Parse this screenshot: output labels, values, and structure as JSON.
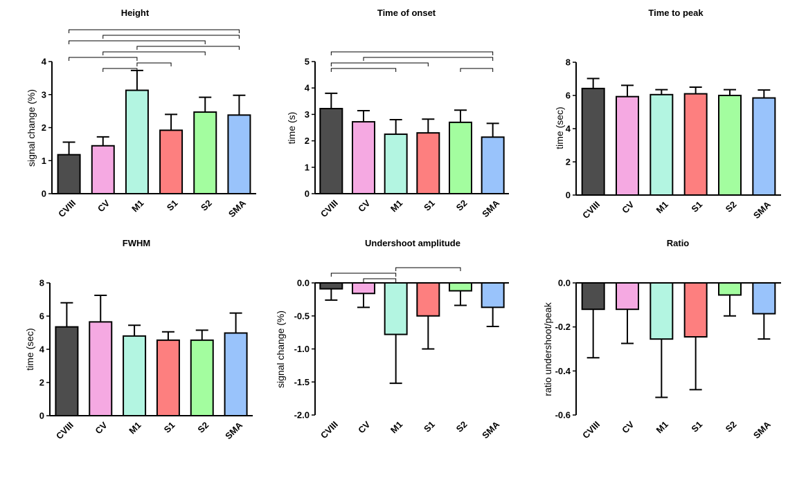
{
  "chart_data": [
    {
      "type": "bar",
      "title": "Height",
      "ylabel": "signal change (%)",
      "categories": [
        "CVIII",
        "CV",
        "M1",
        "S1",
        "S2",
        "SMA"
      ],
      "values": [
        1.18,
        1.45,
        3.13,
        1.92,
        2.47,
        2.38
      ],
      "errors": [
        0.38,
        0.27,
        0.6,
        0.48,
        0.45,
        0.6
      ],
      "ylim": [
        0,
        4
      ],
      "yticks": [
        "0",
        "1",
        "2",
        "3",
        "4"
      ],
      "significance": [
        [
          0,
          2
        ],
        [
          0,
          4
        ],
        [
          0,
          5
        ],
        [
          1,
          2
        ],
        [
          1,
          4
        ],
        [
          1,
          5
        ],
        [
          2,
          3
        ],
        [
          2,
          5
        ]
      ]
    },
    {
      "type": "bar",
      "title": "Time of onset",
      "ylabel": "time (s)",
      "categories": [
        "CVIII",
        "CV",
        "M1",
        "S1",
        "S2",
        "SMA"
      ],
      "values": [
        3.22,
        2.72,
        2.25,
        2.3,
        2.7,
        2.14
      ],
      "errors": [
        0.58,
        0.42,
        0.55,
        0.52,
        0.46,
        0.52
      ],
      "ylim": [
        0,
        5
      ],
      "yticks": [
        "0",
        "1",
        "2",
        "3",
        "4",
        "5"
      ],
      "significance": [
        [
          0,
          2
        ],
        [
          0,
          3
        ],
        [
          0,
          5
        ],
        [
          1,
          5
        ],
        [
          4,
          5
        ]
      ]
    },
    {
      "type": "bar",
      "title": "Time to peak",
      "ylabel": "time (sec)",
      "categories": [
        "CVIII",
        "CV",
        "M1",
        "S1",
        "S2",
        "SMA"
      ],
      "values": [
        6.42,
        5.93,
        6.05,
        6.1,
        6.0,
        5.85
      ],
      "errors": [
        0.6,
        0.68,
        0.3,
        0.4,
        0.35,
        0.48
      ],
      "ylim": [
        0,
        8
      ],
      "yticks": [
        "0",
        "2",
        "4",
        "6",
        "8"
      ],
      "significance": []
    },
    {
      "type": "bar",
      "title": "FWHM",
      "ylabel": "time (sec)",
      "categories": [
        "CVIII",
        "CV",
        "M1",
        "S1",
        "S2",
        "SMA"
      ],
      "values": [
        5.35,
        5.65,
        4.8,
        4.55,
        4.55,
        4.98
      ],
      "errors": [
        1.45,
        1.6,
        0.65,
        0.5,
        0.6,
        1.2
      ],
      "ylim": [
        0,
        8
      ],
      "yticks": [
        "0",
        "2",
        "4",
        "6",
        "8"
      ],
      "significance": []
    },
    {
      "type": "bar",
      "title": "Undershoot amplitude",
      "ylabel": "signal change (%)",
      "categories": [
        "CVIII",
        "CV",
        "M1",
        "S1",
        "S2",
        "SMA"
      ],
      "values": [
        -0.09,
        -0.16,
        -0.78,
        -0.5,
        -0.12,
        -0.37
      ],
      "errors": [
        0.17,
        0.21,
        0.74,
        0.5,
        0.22,
        0.29
      ],
      "ylim": [
        -2,
        0
      ],
      "yticks": [
        "-2.0",
        "-1.5",
        "-1.0",
        "-0.5",
        "0.0"
      ],
      "significance": [
        [
          0,
          2
        ],
        [
          1,
          2
        ],
        [
          2,
          4
        ]
      ]
    },
    {
      "type": "bar",
      "title": "Ratio",
      "ylabel": "ratio undershoot/peak",
      "categories": [
        "CVIII",
        "CV",
        "M1",
        "S1",
        "S2",
        "SMA"
      ],
      "values": [
        -0.12,
        -0.12,
        -0.255,
        -0.245,
        -0.055,
        -0.14
      ],
      "errors": [
        0.22,
        0.155,
        0.265,
        0.24,
        0.095,
        0.115
      ],
      "ylim": [
        -0.6,
        0
      ],
      "yticks": [
        "-0.6",
        "-0.4",
        "-0.2",
        "0.0"
      ],
      "significance": []
    }
  ],
  "colors": {
    "CVIII": "#4d4d4d",
    "CV": "#f5a9e2",
    "M1": "#b3f5e1",
    "S1": "#fd7f7f",
    "S2": "#a3fd9f",
    "SMA": "#99c3fb",
    "outline": "#000000"
  }
}
